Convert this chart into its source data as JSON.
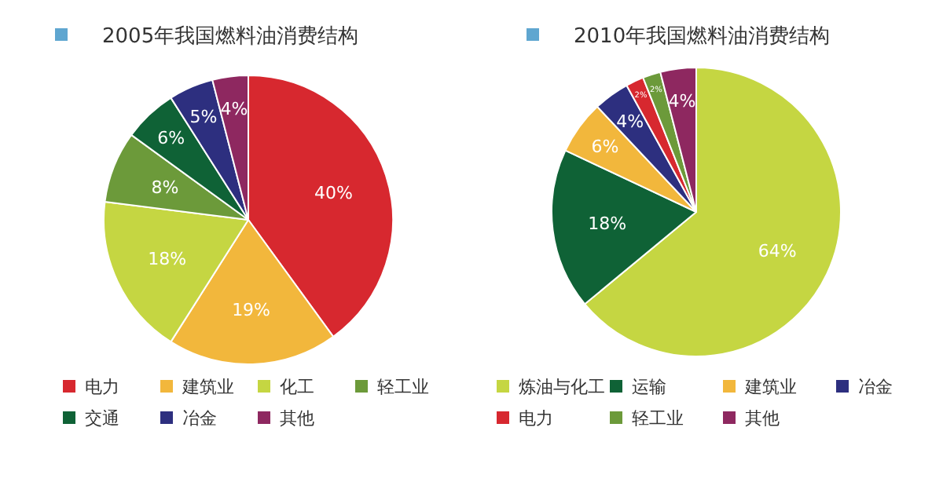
{
  "chart_data": [
    {
      "type": "pie",
      "title": "2005年我国燃料油消费结构",
      "categories": [
        "电力",
        "建筑业",
        "化工",
        "轻工业",
        "交通",
        "冶金",
        "其他"
      ],
      "values": [
        40,
        19,
        18,
        8,
        6,
        5,
        4
      ],
      "value_labels": [
        "40%",
        "19%",
        "18%",
        "8%",
        "6%",
        "5%",
        "4%"
      ],
      "colors": [
        "#d7282f",
        "#f2b73c",
        "#c5d642",
        "#6c9a3a",
        "#0f6236",
        "#2d2f7f",
        "#8e2860"
      ],
      "legend": "bottom"
    },
    {
      "type": "pie",
      "title": "2010年我国燃料油消费结构",
      "categories": [
        "炼油与化工",
        "运输",
        "建筑业",
        "冶金",
        "电力",
        "轻工业",
        "其他"
      ],
      "values": [
        64,
        18,
        6,
        4,
        2,
        2,
        4
      ],
      "value_labels": [
        "64%",
        "18%",
        "6%",
        "4%",
        "2%",
        "2%",
        "4%"
      ],
      "colors": [
        "#c5d642",
        "#0f6236",
        "#f2b73c",
        "#2d2f7f",
        "#d7282f",
        "#6c9a3a",
        "#8e2860"
      ],
      "legend": "bottom"
    }
  ]
}
